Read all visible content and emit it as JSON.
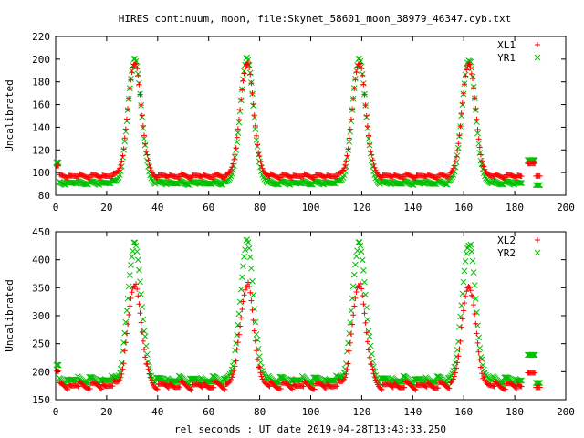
{
  "title": "HIRES continuum, moon, file:Skynet_58601_moon_38979_46347.cyb.txt",
  "xlabel": "rel seconds : UT date 2019-04-28T13:43:33.250",
  "colors": {
    "series_a": "#ff0000",
    "series_b": "#00c000",
    "axis": "#000000"
  },
  "chart_data": [
    {
      "type": "scatter",
      "ylabel": "Uncalibrated",
      "xlim": [
        0,
        200
      ],
      "ylim": [
        80,
        220
      ],
      "xticks": [
        0,
        20,
        40,
        60,
        80,
        100,
        120,
        140,
        160,
        180,
        200
      ],
      "yticks": [
        80,
        100,
        120,
        140,
        160,
        180,
        200,
        220
      ],
      "legend": "top-right",
      "grid": false,
      "series": [
        {
          "name": "XL1",
          "marker": "+",
          "color": "#ff0000",
          "base": 97,
          "start_level": 106,
          "peak": 197,
          "peaks_x": [
            31,
            75,
            119,
            162
          ],
          "end_level": 108,
          "tail_level": 97
        },
        {
          "name": "YR1",
          "marker": "x",
          "color": "#00c000",
          "base": 91,
          "start_level": 109,
          "peak": 200,
          "peaks_x": [
            31,
            75,
            119,
            162
          ],
          "end_level": 111,
          "tail_level": 89
        }
      ]
    },
    {
      "type": "scatter",
      "ylabel": "Uncalibrated",
      "xlim": [
        0,
        200
      ],
      "ylim": [
        150,
        450
      ],
      "xticks": [
        0,
        20,
        40,
        60,
        80,
        100,
        120,
        140,
        160,
        180,
        200
      ],
      "yticks": [
        150,
        200,
        250,
        300,
        350,
        400,
        450
      ],
      "legend": "top-right",
      "grid": false,
      "series": [
        {
          "name": "XL2",
          "marker": "+",
          "color": "#ff0000",
          "base": 175,
          "start_level": 201,
          "peak": 357,
          "peaks_x": [
            31,
            75,
            119,
            162
          ],
          "end_level": 198,
          "tail_level": 172
        },
        {
          "name": "YR2",
          "marker": "x",
          "color": "#00c000",
          "base": 185,
          "start_level": 212,
          "peak": 430,
          "peaks_x": [
            31,
            75,
            119,
            162
          ],
          "end_level": 230,
          "tail_level": 180
        }
      ]
    }
  ]
}
